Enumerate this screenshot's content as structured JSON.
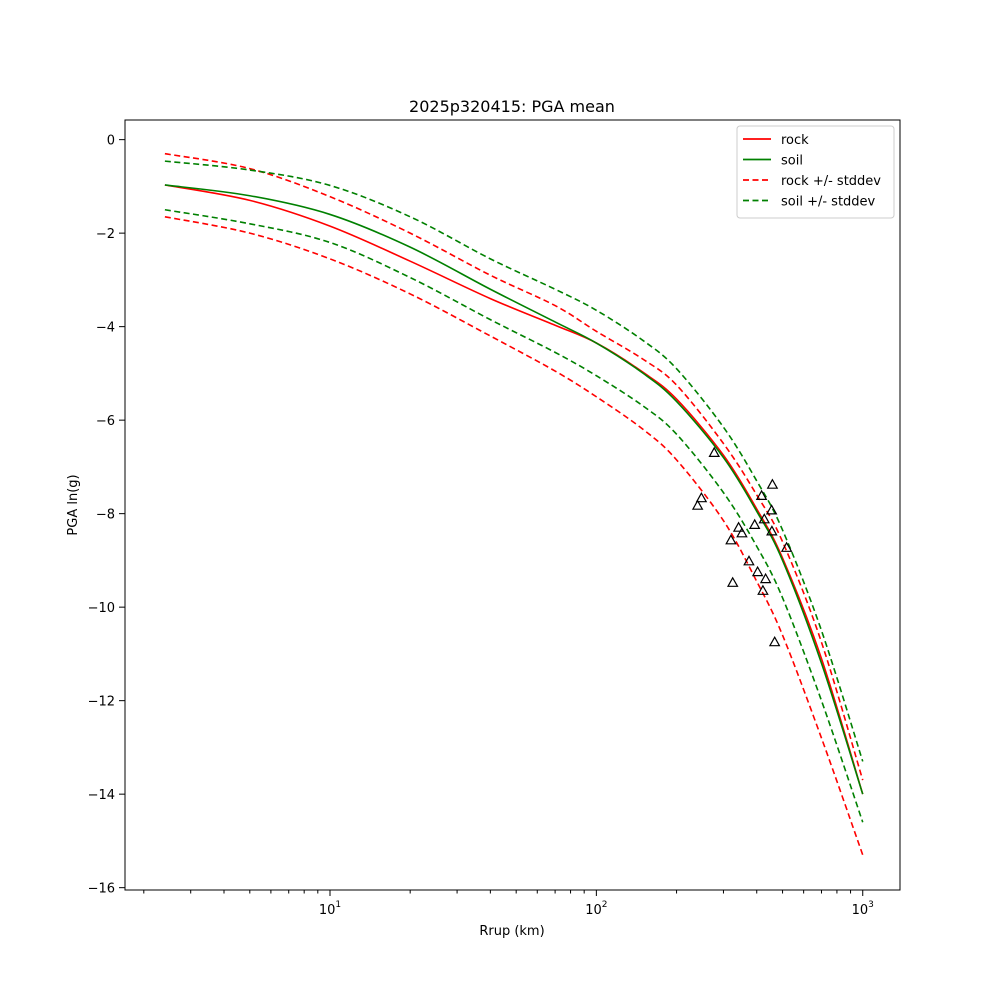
{
  "chart_data": {
    "type": "line",
    "title": "2025p320415: PGA mean",
    "xlabel": "Rrup (km)",
    "ylabel": "PGA ln(g)",
    "xscale": "log",
    "xlim": [
      1.7,
      1380
    ],
    "ylim": [
      -16.05,
      0.42
    ],
    "xticks": [
      {
        "value": 10,
        "base": "10",
        "exp": "1"
      },
      {
        "value": 100,
        "base": "10",
        "exp": "2"
      },
      {
        "value": 1000,
        "base": "10",
        "exp": "3"
      }
    ],
    "yticks": [
      0,
      -2,
      -4,
      -6,
      -8,
      -10,
      -12,
      -14,
      -16
    ],
    "ytick_labels": [
      "0",
      "−2",
      "−4",
      "−6",
      "−8",
      "−10",
      "−12",
      "−14",
      "−16"
    ],
    "grid": false,
    "legend_position": "top-right",
    "legend": [
      {
        "label": "rock",
        "color": "#ff0000",
        "dash": "solid"
      },
      {
        "label": "soil",
        "color": "#008000",
        "dash": "solid"
      },
      {
        "label": "rock +/- stddev",
        "color": "#ff0000",
        "dash": "dashed"
      },
      {
        "label": "soil +/- stddev",
        "color": "#008000",
        "dash": "dashed"
      }
    ],
    "series": [
      {
        "name": "rock",
        "color": "#ff0000",
        "dash": "solid",
        "x": [
          2.4,
          5,
          10,
          20,
          40,
          70,
          100,
          150,
          200,
          300,
          400,
          500,
          700,
          1000
        ],
        "y": [
          -0.97,
          -1.3,
          -1.85,
          -2.6,
          -3.4,
          -3.97,
          -4.35,
          -4.98,
          -5.55,
          -6.75,
          -7.9,
          -8.95,
          -11.1,
          -14.0
        ]
      },
      {
        "name": "soil",
        "color": "#008000",
        "dash": "solid",
        "x": [
          2.4,
          5,
          10,
          20,
          40,
          70,
          100,
          150,
          200,
          300,
          400,
          500,
          700,
          1000
        ],
        "y": [
          -0.97,
          -1.2,
          -1.6,
          -2.3,
          -3.2,
          -3.9,
          -4.35,
          -5.0,
          -5.6,
          -6.8,
          -7.95,
          -9.0,
          -11.2,
          -14.0
        ]
      },
      {
        "name": "rock",
        "color": "#ff0000",
        "dash": "dashed",
        "x": [
          2.4,
          5,
          10,
          20,
          40,
          70,
          100,
          150,
          200,
          300,
          400,
          500,
          700,
          1000
        ],
        "y": [
          -0.3,
          -0.62,
          -1.22,
          -2.0,
          -2.9,
          -3.55,
          -4.1,
          -4.7,
          -5.25,
          -6.5,
          -7.6,
          -8.6,
          -10.75,
          -13.7
        ]
      },
      {
        "name": "rock",
        "color": "#ff0000",
        "dash": "dashed",
        "x": [
          2.4,
          5,
          10,
          20,
          40,
          70,
          100,
          150,
          200,
          300,
          400,
          500,
          700,
          1000
        ],
        "y": [
          -1.65,
          -2.0,
          -2.55,
          -3.3,
          -4.2,
          -4.95,
          -5.5,
          -6.2,
          -6.85,
          -8.15,
          -9.45,
          -10.6,
          -12.8,
          -15.3
        ]
      },
      {
        "name": "soil",
        "color": "#008000",
        "dash": "dashed",
        "x": [
          2.4,
          5,
          10,
          20,
          40,
          70,
          100,
          150,
          200,
          300,
          400,
          500,
          700,
          1000
        ],
        "y": [
          -0.46,
          -0.65,
          -0.98,
          -1.65,
          -2.55,
          -3.2,
          -3.65,
          -4.3,
          -4.9,
          -6.15,
          -7.3,
          -8.35,
          -10.5,
          -13.3
        ]
      },
      {
        "name": "soil",
        "color": "#008000",
        "dash": "dashed",
        "x": [
          2.4,
          5,
          10,
          20,
          40,
          70,
          100,
          150,
          200,
          300,
          400,
          500,
          700,
          1000
        ],
        "y": [
          -1.5,
          -1.8,
          -2.2,
          -2.95,
          -3.85,
          -4.55,
          -5.05,
          -5.7,
          -6.3,
          -7.55,
          -8.7,
          -9.8,
          -12.0,
          -14.6
        ]
      }
    ],
    "observations": {
      "marker": "triangle",
      "color": "#000000",
      "points": [
        {
          "x": 277,
          "y": -6.7
        },
        {
          "x": 240,
          "y": -7.83
        },
        {
          "x": 248,
          "y": -7.67
        },
        {
          "x": 320,
          "y": -8.57
        },
        {
          "x": 342,
          "y": -8.3
        },
        {
          "x": 352,
          "y": -8.42
        },
        {
          "x": 325,
          "y": -9.48
        },
        {
          "x": 374,
          "y": -9.02
        },
        {
          "x": 393,
          "y": -8.24
        },
        {
          "x": 403,
          "y": -9.25
        },
        {
          "x": 417,
          "y": -7.62
        },
        {
          "x": 422,
          "y": -9.65
        },
        {
          "x": 427,
          "y": -8.12
        },
        {
          "x": 432,
          "y": -9.4
        },
        {
          "x": 455,
          "y": -7.93
        },
        {
          "x": 456,
          "y": -8.38
        },
        {
          "x": 458,
          "y": -7.38
        },
        {
          "x": 467,
          "y": -10.75
        },
        {
          "x": 518,
          "y": -8.73
        }
      ]
    }
  }
}
